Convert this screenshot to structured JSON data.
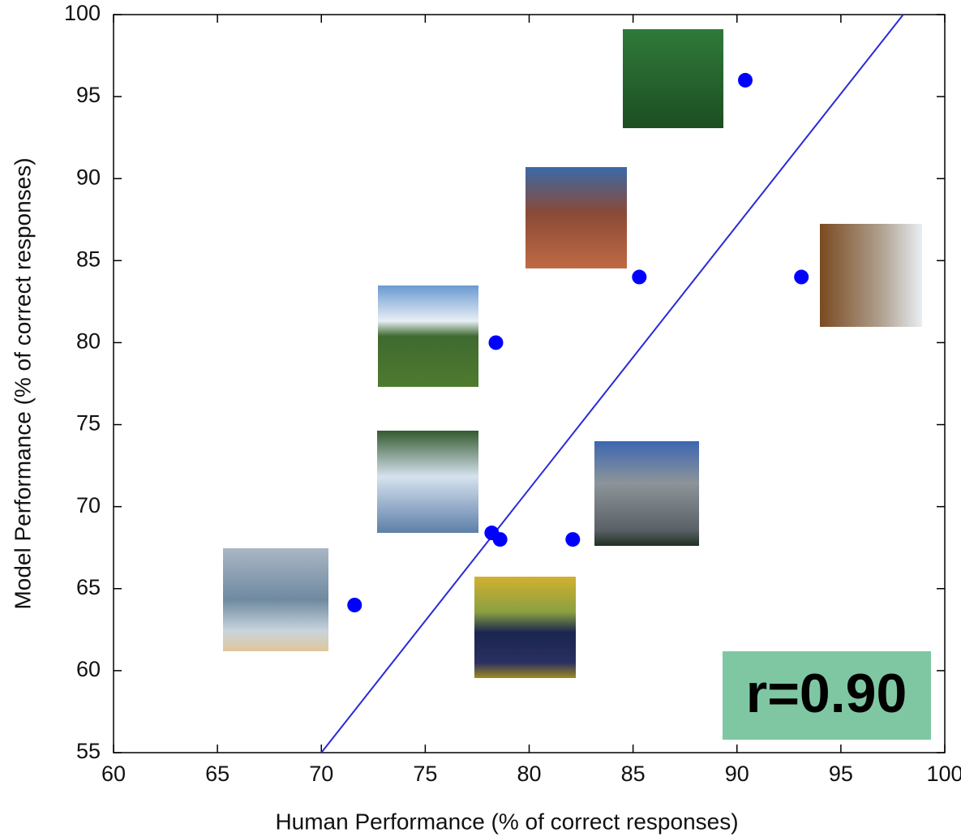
{
  "chart_data": {
    "type": "scatter",
    "xlabel": "Human Performance (% of correct responses)",
    "ylabel": "Model Performance (% of correct responses)",
    "xlim": [
      60,
      100
    ],
    "ylim": [
      55,
      100
    ],
    "xticks": [
      60,
      65,
      70,
      75,
      80,
      85,
      90,
      95,
      100
    ],
    "yticks": [
      55,
      60,
      65,
      70,
      75,
      80,
      85,
      90,
      95,
      100
    ],
    "series": [
      {
        "color": "#0000ff",
        "x": [
          90.4,
          85.3,
          93.1,
          78.4,
          78.2,
          78.6,
          82.1,
          71.6
        ],
        "values": [
          96,
          84,
          84,
          80,
          68.4,
          68,
          68,
          64
        ]
      }
    ],
    "fit_line": {
      "color": "#2a2ad8",
      "x": [
        70,
        98
      ],
      "values": [
        55,
        100
      ]
    },
    "annotation": "r=0.90"
  }
}
